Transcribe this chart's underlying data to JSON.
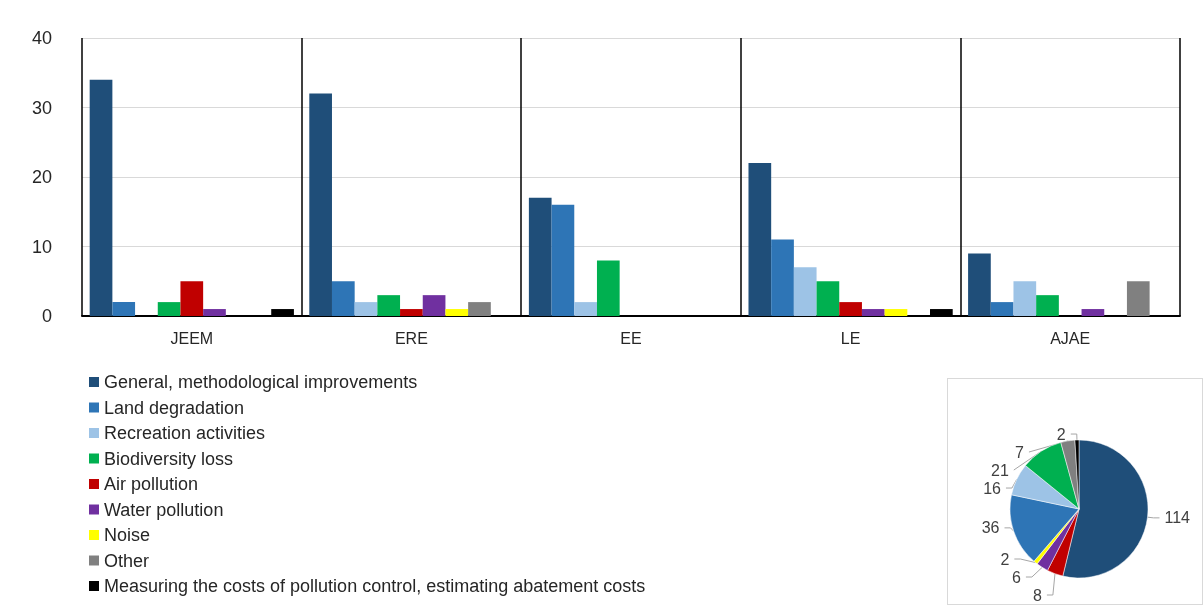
{
  "chart_data": [
    {
      "type": "bar",
      "categories": [
        "JEEM",
        "ERE",
        "EE",
        "LE",
        "AJAE"
      ],
      "series": [
        {
          "name": "General, methodological improvements",
          "color": "#1f4e79",
          "values": [
            34,
            32,
            17,
            22,
            9
          ]
        },
        {
          "name": "Land degradation",
          "color": "#2e75b6",
          "values": [
            2,
            5,
            16,
            11,
            2
          ]
        },
        {
          "name": "Recreation activities",
          "color": "#9dc3e6",
          "values": [
            0,
            2,
            2,
            7,
            5
          ]
        },
        {
          "name": "Biodiversity loss",
          "color": "#00b050",
          "values": [
            2,
            3,
            8,
            5,
            3
          ]
        },
        {
          "name": "Air pollution",
          "color": "#c00000",
          "values": [
            5,
            1,
            0,
            2,
            0
          ]
        },
        {
          "name": "Water pollution",
          "color": "#7030a0",
          "values": [
            1,
            3,
            0,
            1,
            1
          ]
        },
        {
          "name": "Noise",
          "color": "#ffff00",
          "values": [
            0,
            1,
            0,
            1,
            0
          ]
        },
        {
          "name": "Other",
          "color": "#808080",
          "values": [
            0,
            2,
            0,
            0,
            5
          ]
        },
        {
          "name": "Measuring the costs of pollution control, estimating abatement costs",
          "color": "#000000",
          "values": [
            1,
            0,
            0,
            1,
            0
          ]
        }
      ],
      "ylim": [
        0,
        40
      ],
      "yticks": [
        0,
        10,
        20,
        30,
        40
      ],
      "grid": true,
      "legend": "bottom left"
    },
    {
      "type": "pie",
      "categories": [
        null,
        null,
        null,
        null,
        null,
        null,
        null,
        null,
        null
      ],
      "values": [
        114,
        8,
        6,
        2,
        36,
        16,
        21,
        7,
        2
      ],
      "colors": [
        "#1f4e79",
        "#c00000",
        "#7030a0",
        "#ffff00",
        "#2e75b6",
        "#9dc3e6",
        "#00b050",
        "#808080",
        "#000000"
      ],
      "data_labels": true
    }
  ]
}
